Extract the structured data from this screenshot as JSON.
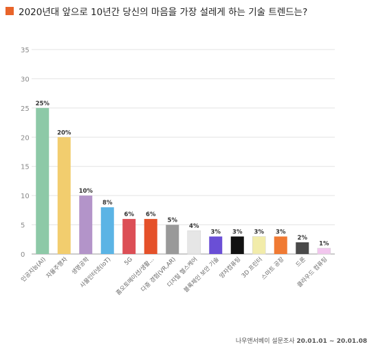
{
  "header": {
    "title": "2020년대 앞으로 10년간 당신의 마음을 가장 설레게 하는 기술 트렌드는?",
    "marker_color": "#e8642a"
  },
  "footer": {
    "source": "나우앤서베이 설문조사",
    "period": "20.01.01 ~ 20.01.08"
  },
  "chart_data": {
    "type": "bar",
    "ylim": [
      0,
      35
    ],
    "yticks": [
      0,
      5,
      10,
      15,
      20,
      25,
      30,
      35
    ],
    "grid": true,
    "categories": [
      "인공지능(AI)",
      "자율주행차",
      "생명공학",
      "사물인터넷(IoT)",
      "5G",
      "홈오토메이션/생활...",
      "다중 경험(VR,AR)",
      "디지털 헬스케어",
      "블록체인 보안 기술",
      "양자컴퓨팅",
      "3D 프린터",
      "스마트 공장",
      "드론",
      "클라우드 컴퓨팅"
    ],
    "values": [
      25,
      20,
      10,
      8,
      6,
      6,
      5,
      4,
      3,
      3,
      3,
      3,
      2,
      1
    ],
    "value_labels": [
      "25%",
      "20%",
      "10%",
      "8%",
      "6%",
      "6%",
      "5%",
      "4%",
      "3%",
      "3%",
      "3%",
      "3%",
      "2%",
      "1%"
    ],
    "colors": [
      "#8dc9a7",
      "#f2cd6e",
      "#b394c9",
      "#5bb4e5",
      "#dc4f56",
      "#e5512a",
      "#999999",
      "#e6e6e6",
      "#6a4fd6",
      "#111111",
      "#f2ecaa",
      "#f07a33",
      "#4a4a4a",
      "#f2c6ee"
    ]
  }
}
